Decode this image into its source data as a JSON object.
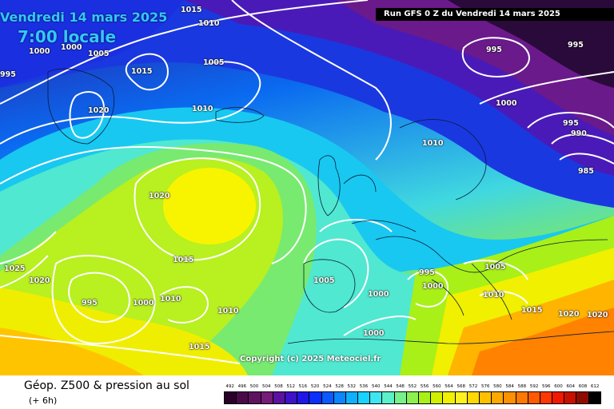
{
  "header": {
    "date": "Vendredi 14 mars 2025",
    "local_time": "7:00 locale",
    "run": "Run GFS 0 Z du Vendredi 14 mars 2025"
  },
  "copyright": "Copyright (c) 2025 Meteociel.fr",
  "legend": {
    "title": "Géop. Z500 & pression au sol",
    "subtitle": "(+ 6h)",
    "scale_values": [
      "492",
      "496",
      "500",
      "504",
      "508",
      "512",
      "516",
      "520",
      "524",
      "528",
      "532",
      "536",
      "540",
      "544",
      "548",
      "552",
      "556",
      "560",
      "564",
      "568",
      "572",
      "576",
      "580",
      "584",
      "588",
      "592",
      "596",
      "600",
      "604",
      "608",
      "612"
    ],
    "scale_colors": [
      "#2a0029",
      "#4a0a4a",
      "#5e1360",
      "#731c78",
      "#5b12a0",
      "#3d12c8",
      "#1f17e8",
      "#0a30ff",
      "#0a5aff",
      "#0a86ff",
      "#0fb0ff",
      "#18d2ff",
      "#3ee6f0",
      "#5cf0c8",
      "#78f08c",
      "#8cf050",
      "#a8f018",
      "#d0f000",
      "#f0f000",
      "#fff020",
      "#ffd800",
      "#ffc000",
      "#ffa800",
      "#ff9000",
      "#ff7800",
      "#ff5a00",
      "#ff3800",
      "#f01800",
      "#c81000",
      "#8c0c00",
      "#000000"
    ]
  },
  "pressure_labels": [
    "1015",
    "1010",
    "1000",
    "1005",
    "1000",
    "995",
    "1015",
    "1005",
    "1020",
    "1010",
    "995",
    "995",
    "1000",
    "995",
    "990",
    "985",
    "1010",
    "1020",
    "1015",
    "1025",
    "1020",
    "995",
    "1000",
    "1010",
    "1010",
    "1005",
    "1000",
    "995",
    "1000",
    "1005",
    "1010",
    "1015",
    "1020",
    "1020",
    "1000",
    "1015"
  ],
  "map_colors": {
    "deep_low": "#2a0a3a",
    "purple": "#6a1a8a",
    "violet": "#4a1ab8",
    "deep_blue": "#1a30e0",
    "blue": "#0a7af0",
    "cyan": "#18c8f0",
    "aqua": "#50e8d0",
    "green": "#78ea70",
    "lime": "#b8f020",
    "yellow": "#f8f400",
    "orange": "#ffb400",
    "dark_orange": "#ff8200"
  }
}
